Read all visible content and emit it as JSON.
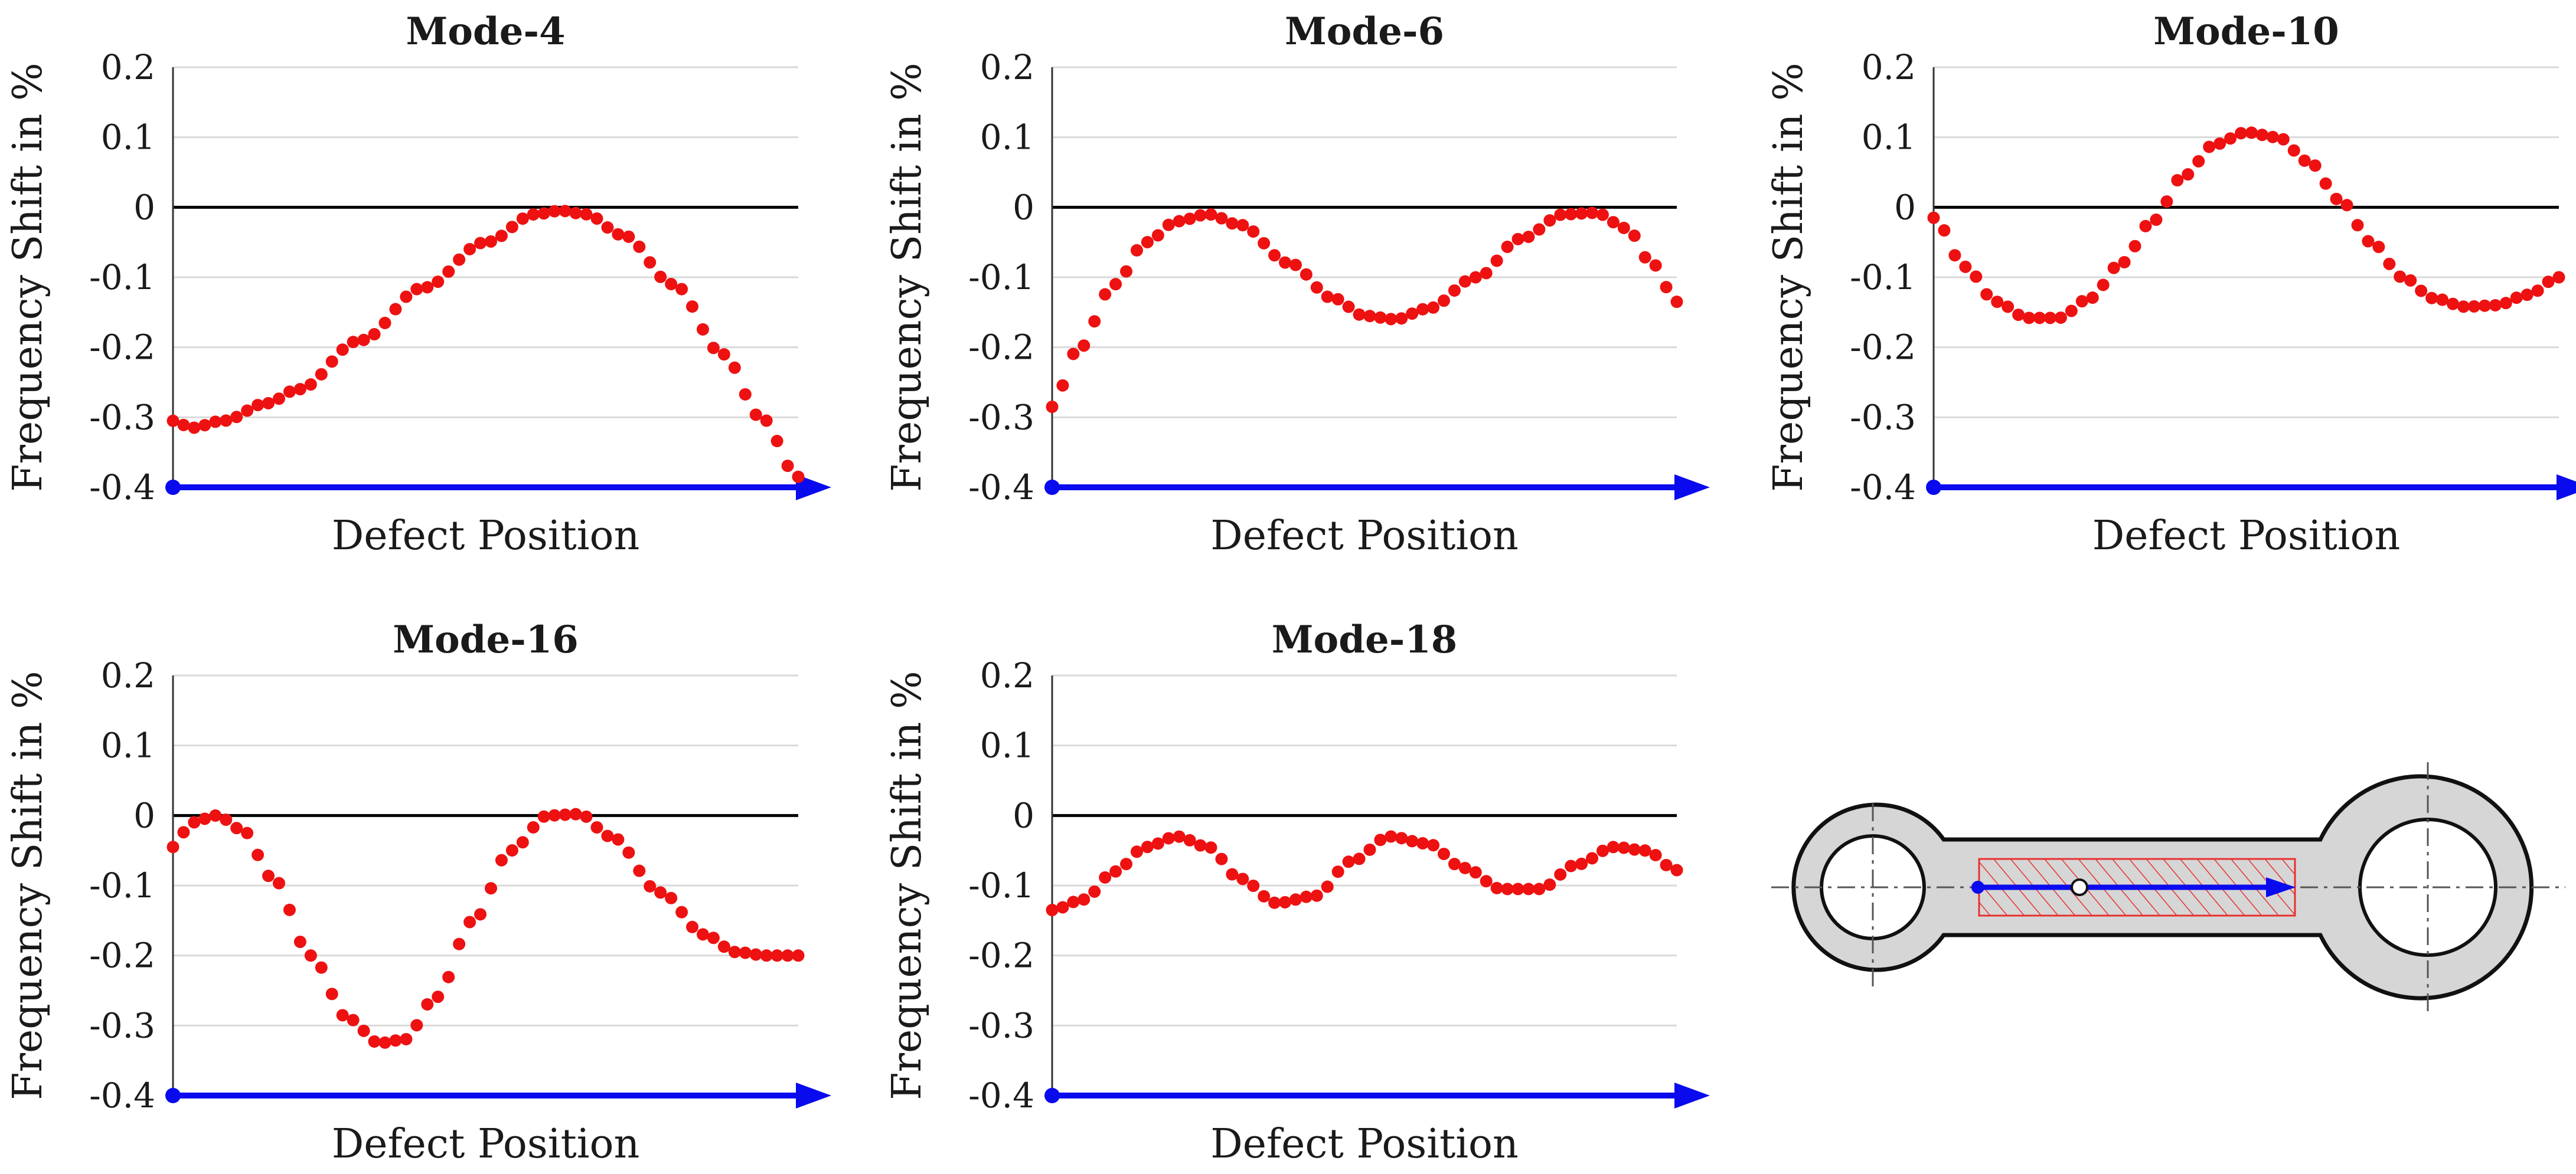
{
  "colors": {
    "points": "#ee1111",
    "arrow": "#0a0aee",
    "grid": "#d9d9d9",
    "zero_line": "#000000",
    "rod_fill": "#d6d6d6",
    "hatch": "#e83030"
  },
  "chart_data": [
    {
      "type": "scatter",
      "title": "Mode-4",
      "xlabel": "Defect Position",
      "ylabel": "Frequency Shift in %",
      "ylim": [
        -0.4,
        0.2
      ],
      "yticks": [
        "0.2",
        "0.1",
        "0",
        "-0.1",
        "-0.2",
        "-0.3",
        "-0.4"
      ],
      "anchors": [
        [
          0,
          -0.305
        ],
        [
          0.03,
          -0.315
        ],
        [
          0.08,
          -0.305
        ],
        [
          0.15,
          -0.28
        ],
        [
          0.2,
          -0.26
        ],
        [
          0.3,
          -0.19
        ],
        [
          0.4,
          -0.115
        ],
        [
          0.5,
          -0.05
        ],
        [
          0.58,
          -0.01
        ],
        [
          0.62,
          -0.005
        ],
        [
          0.66,
          -0.01
        ],
        [
          0.72,
          -0.04
        ],
        [
          0.8,
          -0.11
        ],
        [
          0.88,
          -0.21
        ],
        [
          0.94,
          -0.3
        ],
        [
          1.0,
          -0.385
        ]
      ]
    },
    {
      "type": "scatter",
      "title": "Mode-6",
      "xlabel": "Defect Position",
      "ylabel": "Frequency Shift in %",
      "ylim": [
        -0.4,
        0.2
      ],
      "yticks": [
        "0.2",
        "0.1",
        "0",
        "-0.1",
        "-0.2",
        "-0.3",
        "-0.4"
      ],
      "anchors": [
        [
          0,
          -0.285
        ],
        [
          0.04,
          -0.205
        ],
        [
          0.1,
          -0.11
        ],
        [
          0.15,
          -0.05
        ],
        [
          0.2,
          -0.02
        ],
        [
          0.25,
          -0.01
        ],
        [
          0.3,
          -0.025
        ],
        [
          0.38,
          -0.08
        ],
        [
          0.45,
          -0.13
        ],
        [
          0.5,
          -0.155
        ],
        [
          0.55,
          -0.16
        ],
        [
          0.6,
          -0.145
        ],
        [
          0.68,
          -0.1
        ],
        [
          0.75,
          -0.045
        ],
        [
          0.82,
          -0.01
        ],
        [
          0.87,
          -0.008
        ],
        [
          0.92,
          -0.03
        ],
        [
          0.96,
          -0.08
        ],
        [
          1.0,
          -0.135
        ]
      ]
    },
    {
      "type": "scatter",
      "title": "Mode-10",
      "xlabel": "Defect Position",
      "ylabel": "Frequency Shift in %",
      "ylim": [
        -0.4,
        0.2
      ],
      "yticks": [
        "0.2",
        "0.1",
        "0",
        "-0.1",
        "-0.2",
        "-0.3",
        "-0.4"
      ],
      "anchors": [
        [
          0,
          -0.015
        ],
        [
          0.05,
          -0.085
        ],
        [
          0.1,
          -0.135
        ],
        [
          0.15,
          -0.158
        ],
        [
          0.2,
          -0.158
        ],
        [
          0.25,
          -0.13
        ],
        [
          0.3,
          -0.08
        ],
        [
          0.35,
          -0.02
        ],
        [
          0.4,
          0.045
        ],
        [
          0.45,
          0.09
        ],
        [
          0.5,
          0.107
        ],
        [
          0.55,
          0.1
        ],
        [
          0.6,
          0.065
        ],
        [
          0.65,
          0.01
        ],
        [
          0.7,
          -0.05
        ],
        [
          0.75,
          -0.1
        ],
        [
          0.8,
          -0.13
        ],
        [
          0.85,
          -0.142
        ],
        [
          0.9,
          -0.14
        ],
        [
          0.95,
          -0.125
        ],
        [
          1.0,
          -0.1
        ]
      ]
    },
    {
      "type": "scatter",
      "title": "Mode-16",
      "xlabel": "Defect Position",
      "ylabel": "Frequency Shift in %",
      "ylim": [
        -0.4,
        0.2
      ],
      "yticks": [
        "0.2",
        "0.1",
        "0",
        "-0.1",
        "-0.2",
        "-0.3",
        "-0.4"
      ],
      "anchors": [
        [
          0,
          -0.045
        ],
        [
          0.03,
          -0.01
        ],
        [
          0.07,
          0.0
        ],
        [
          0.11,
          -0.02
        ],
        [
          0.16,
          -0.09
        ],
        [
          0.22,
          -0.2
        ],
        [
          0.28,
          -0.29
        ],
        [
          0.33,
          -0.325
        ],
        [
          0.37,
          -0.32
        ],
        [
          0.42,
          -0.26
        ],
        [
          0.48,
          -0.15
        ],
        [
          0.54,
          -0.05
        ],
        [
          0.6,
          0.0
        ],
        [
          0.65,
          0.002
        ],
        [
          0.7,
          -0.03
        ],
        [
          0.78,
          -0.11
        ],
        [
          0.85,
          -0.17
        ],
        [
          0.9,
          -0.195
        ],
        [
          0.95,
          -0.2
        ],
        [
          1.0,
          -0.2
        ]
      ]
    },
    {
      "type": "scatter",
      "title": "Mode-18",
      "xlabel": "Defect Position",
      "ylabel": "Frequency Shift in %",
      "ylim": [
        -0.4,
        0.2
      ],
      "yticks": [
        "0.2",
        "0.1",
        "0",
        "-0.1",
        "-0.2",
        "-0.3",
        "-0.4"
      ],
      "anchors": [
        [
          0,
          -0.135
        ],
        [
          0.05,
          -0.12
        ],
        [
          0.1,
          -0.08
        ],
        [
          0.15,
          -0.045
        ],
        [
          0.2,
          -0.03
        ],
        [
          0.25,
          -0.045
        ],
        [
          0.3,
          -0.09
        ],
        [
          0.36,
          -0.125
        ],
        [
          0.42,
          -0.115
        ],
        [
          0.48,
          -0.065
        ],
        [
          0.54,
          -0.03
        ],
        [
          0.6,
          -0.04
        ],
        [
          0.66,
          -0.075
        ],
        [
          0.72,
          -0.105
        ],
        [
          0.78,
          -0.105
        ],
        [
          0.84,
          -0.07
        ],
        [
          0.9,
          -0.045
        ],
        [
          0.95,
          -0.05
        ],
        [
          1.0,
          -0.078
        ]
      ]
    }
  ]
}
